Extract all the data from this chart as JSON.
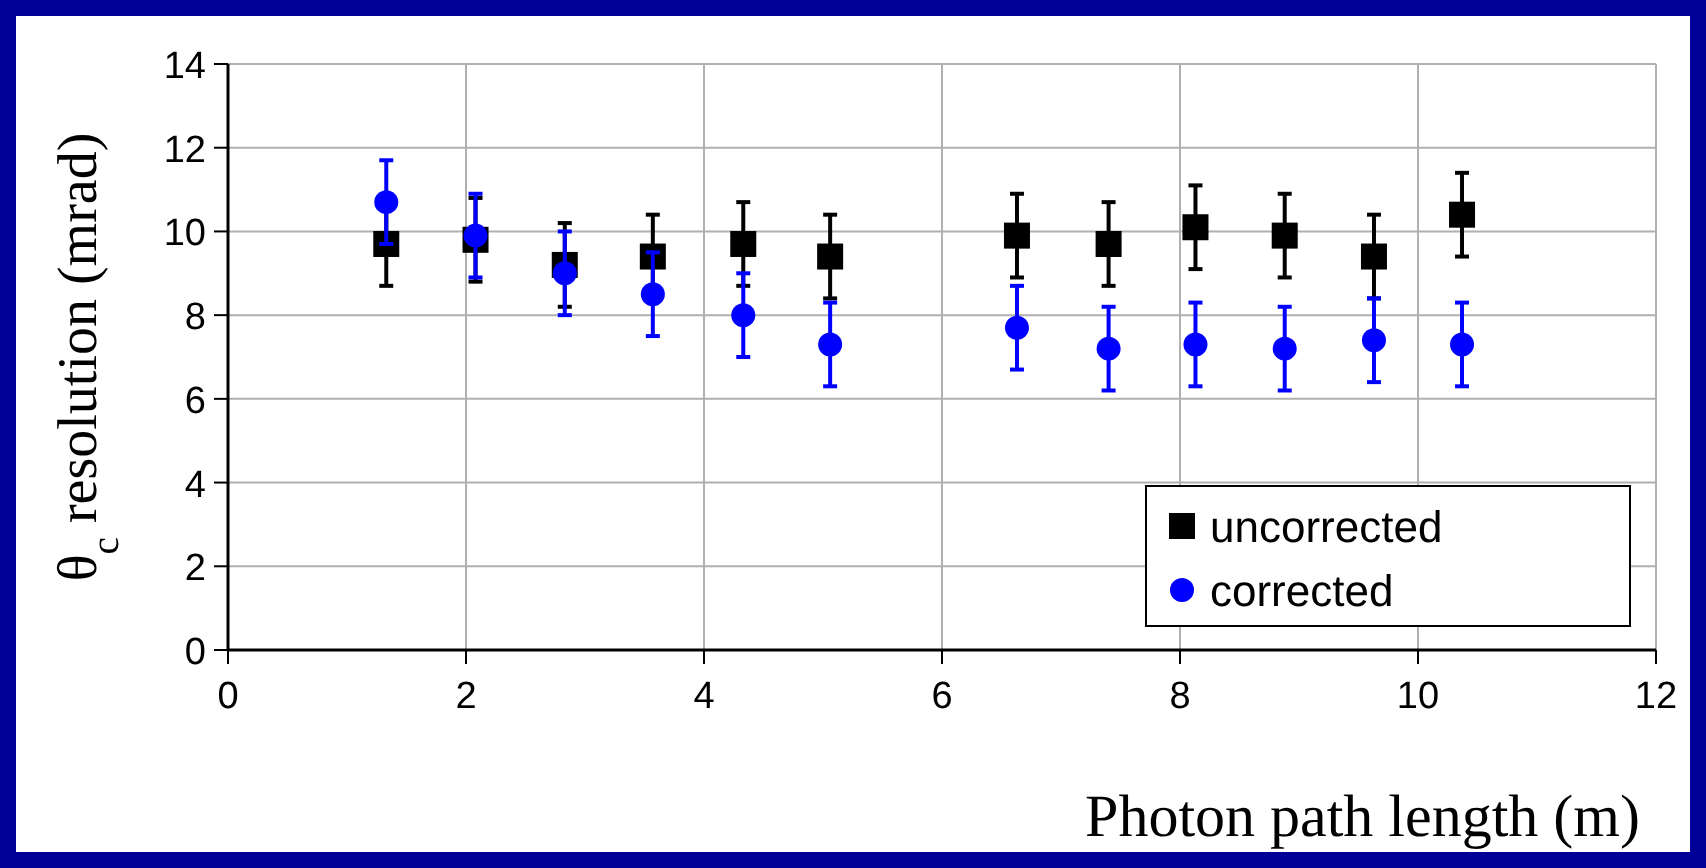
{
  "chart_data": {
    "type": "scatter",
    "xlabel": "Photon path length (m)",
    "ylabel": "θ$_{c}$ resolution (mrad)",
    "xlim": [
      0,
      12
    ],
    "xticks": [
      0,
      2,
      4,
      6,
      8,
      10,
      12
    ],
    "ylim": [
      0,
      14
    ],
    "yticks": [
      0,
      2,
      4,
      6,
      8,
      10,
      12,
      14
    ],
    "grid": true,
    "legend": "bottom right",
    "series": [
      {
        "name": "uncorrected",
        "color": "#000000",
        "marker": "square",
        "x": [
          1.33,
          2.08,
          2.83,
          3.57,
          4.33,
          5.06,
          6.63,
          7.4,
          8.13,
          8.88,
          9.63,
          10.37
        ],
        "values": [
          9.7,
          9.8,
          9.2,
          9.4,
          9.7,
          9.4,
          9.9,
          9.7,
          10.1,
          9.9,
          9.4,
          10.4
        ],
        "errors": [
          1,
          1,
          1,
          1,
          1,
          1,
          1,
          1,
          1,
          1,
          1,
          1
        ]
      },
      {
        "name": "corrected",
        "color": "#0000ff",
        "marker": "circle",
        "x": [
          1.33,
          2.08,
          2.83,
          3.57,
          4.33,
          5.06,
          6.63,
          7.4,
          8.13,
          8.88,
          9.63,
          10.37
        ],
        "values": [
          10.7,
          9.9,
          9.0,
          8.5,
          8.0,
          7.3,
          7.7,
          7.2,
          7.3,
          7.2,
          7.4,
          7.3
        ],
        "errors": [
          1,
          1,
          1,
          1,
          1,
          1,
          1,
          1,
          1,
          1,
          1,
          1
        ]
      }
    ]
  }
}
